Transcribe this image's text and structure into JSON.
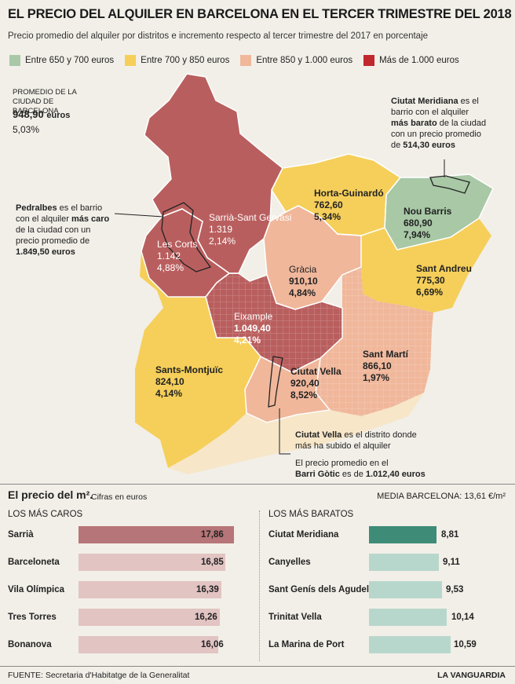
{
  "header": {
    "title": "EL PRECIO DEL ALQUILER EN BARCELONA EN EL TERCER TRIMESTRE DEL 2018",
    "subtitle": "Precio promedio del alquiler por distritos e incremento respecto al tercer trimestre del 2017 en porcentaje"
  },
  "legend": [
    {
      "label": "Entre 650 y 700 euros",
      "color": "#a8c8a6"
    },
    {
      "label": "Entre 700 y 850 euros",
      "color": "#f5cf5a"
    },
    {
      "label": "Entre 850 y 1.000 euros",
      "color": "#f0b79b"
    },
    {
      "label": "Más de 1.000 euros",
      "color": "#c0282d"
    }
  ],
  "city_average": {
    "label": "PROMEDIO DE LA CIUDAD DE BARCELONA",
    "value": "948,90",
    "unit": "euros",
    "change": "5,03%"
  },
  "districts": [
    {
      "name": "Sarrià-Sant Gervasi",
      "price": "1.319",
      "change": "2,14%"
    },
    {
      "name": "Les Corts",
      "price": "1.142",
      "change": "4,88%"
    },
    {
      "name": "Horta-Guinardó",
      "price": "762,60",
      "change": "5,34%"
    },
    {
      "name": "Nou Barris",
      "price": "680,90",
      "change": "7,94%"
    },
    {
      "name": "Gràcia",
      "price": "910,10",
      "change": "4,84%"
    },
    {
      "name": "Sant Andreu",
      "price": "775,30",
      "change": "6,69%"
    },
    {
      "name": "Eixample",
      "price": "1.049,40",
      "change": "4,21%"
    },
    {
      "name": "Sants-Montjuïc",
      "price": "824,10",
      "change": "4,14%"
    },
    {
      "name": "Sant Martí",
      "price": "866,10",
      "change": "1,97%"
    },
    {
      "name": "Ciutat Vella",
      "price": "920,40",
      "change": "8,52%"
    }
  ],
  "notes": {
    "meridiana_1": "Ciutat Meridiana",
    "meridiana_2": " es el",
    "meridiana_3": "barrio con el alquiler",
    "meridiana_4": "más barato",
    "meridiana_5": " de la ciudad",
    "meridiana_6": "con un precio promedio",
    "meridiana_7": "de ",
    "meridiana_8": "514,30 euros",
    "pedralbes_1": "Pedralbes",
    "pedralbes_2": " es el barrio",
    "pedralbes_3": "con el alquiler ",
    "pedralbes_4": "más caro",
    "pedralbes_5": "de la ciudad con un",
    "pedralbes_6": "precio promedio de",
    "pedralbes_7": "1.849,50 euros",
    "cv_1": "Ciutat Vella",
    "cv_2": " es el distrito donde",
    "cv_3": "más ha subido el alquiler",
    "gotic_1": "El precio promedio en el",
    "gotic_2": "Barri Gòtic",
    "gotic_3": " es de ",
    "gotic_4": "1.012,40 euros"
  },
  "m2": {
    "title": "El precio del m².",
    "subtitle": "Cifras en euros",
    "media": "MEDIA BARCELONA: 13,61 €/m²",
    "expensive_header": "LOS MÁS CAROS",
    "cheap_header": "LOS MÁS BARATOS",
    "expensive": [
      {
        "name": "Sarrià",
        "value": "17,86"
      },
      {
        "name": "Barceloneta",
        "value": "16,85"
      },
      {
        "name": "Vila Olímpica",
        "value": "16,39"
      },
      {
        "name": "Tres Torres",
        "value": "16,26"
      },
      {
        "name": "Bonanova",
        "value": "16,06"
      }
    ],
    "cheap": [
      {
        "name": "Ciutat Meridiana",
        "value": "8,81"
      },
      {
        "name": "Canyelles",
        "value": "9,11"
      },
      {
        "name": "Sant Genís dels Agudells",
        "value": "9,53"
      },
      {
        "name": "Trinitat Vella",
        "value": "10,14"
      },
      {
        "name": "La Marina de Port",
        "value": "10,59"
      }
    ]
  },
  "footer": {
    "source": "FUENTE: Secretaria d'Habitatge de la Generalitat",
    "brand": "LA VANGUARDIA"
  }
}
